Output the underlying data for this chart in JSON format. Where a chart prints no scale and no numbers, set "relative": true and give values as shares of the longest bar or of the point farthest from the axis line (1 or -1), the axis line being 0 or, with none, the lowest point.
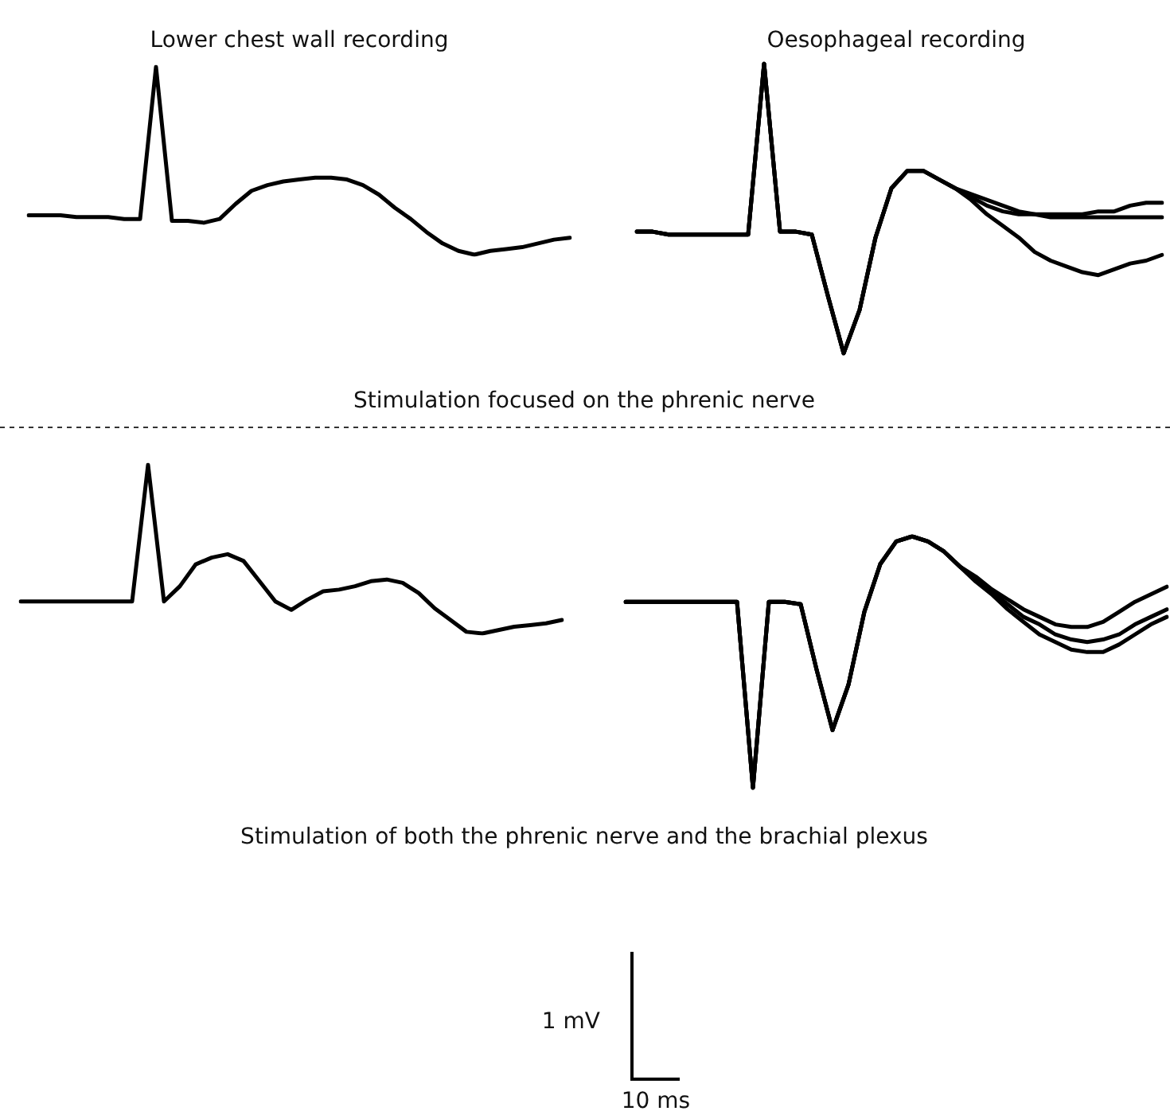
{
  "chart_data": [
    {
      "type": "line",
      "title": "Lower chest wall recording",
      "relative": true,
      "annotations": [
        "Stimulation focused on the phrenic nerve"
      ],
      "categories": [
        null,
        null,
        null,
        null,
        null,
        null,
        null,
        null,
        null,
        null,
        null,
        null,
        null,
        null,
        null,
        null,
        null,
        null,
        null,
        null,
        null,
        null,
        null,
        null,
        null,
        null,
        null,
        null,
        null,
        null,
        null,
        null,
        null,
        null,
        null
      ],
      "series": [
        {
          "color": "#000000",
          "values": [
            0.21,
            0.21,
            0.21,
            0.2,
            0.2,
            0.2,
            0.19,
            0.19,
            1,
            0.18,
            0.18,
            0.17,
            0.19,
            0.27,
            0.34,
            0.37,
            0.39,
            0.4,
            0.41,
            0.41,
            0.4,
            0.37,
            0.32,
            0.25,
            0.19,
            0.12,
            0.06,
            0.02,
            0,
            0.02,
            0.03,
            0.04,
            0.06,
            0.08,
            0.09
          ]
        }
      ]
    },
    {
      "type": "line",
      "title": "Oesophageal recording",
      "relative": true,
      "categories": [
        null,
        null,
        null,
        null,
        null,
        null,
        null,
        null,
        null,
        null,
        null,
        null,
        null,
        null,
        null,
        null,
        null,
        null,
        null,
        null,
        null,
        null,
        null,
        null,
        null,
        null,
        null,
        null,
        null,
        null,
        null,
        null,
        null,
        null
      ],
      "series": [
        {
          "color": "#000000",
          "values": [
            0.42,
            0.42,
            0.41,
            0.41,
            0.41,
            0.41,
            0.41,
            0.41,
            1,
            0.42,
            0.42,
            0.41,
            0.2,
            0,
            0.15,
            0.4,
            0.57,
            0.63,
            0.63,
            0.6,
            0.57,
            0.53,
            0.48,
            0.44,
            0.4,
            0.35,
            0.32,
            0.3,
            0.28,
            0.27,
            0.29,
            0.31,
            0.32,
            0.34
          ]
        },
        {
          "color": "#000000",
          "values": [
            0.42,
            0.42,
            0.41,
            0.41,
            0.41,
            0.41,
            0.41,
            0.41,
            1,
            0.42,
            0.42,
            0.41,
            0.2,
            0,
            0.15,
            0.4,
            0.57,
            0.63,
            0.63,
            0.6,
            0.57,
            0.54,
            0.51,
            0.49,
            0.48,
            0.48,
            0.47,
            0.47,
            0.47,
            0.47,
            0.47,
            0.47,
            0.47,
            0.47
          ]
        },
        {
          "color": "#000000",
          "values": [
            0.42,
            0.42,
            0.41,
            0.41,
            0.41,
            0.41,
            0.41,
            0.41,
            1,
            0.42,
            0.42,
            0.41,
            0.2,
            0,
            0.15,
            0.4,
            0.57,
            0.63,
            0.63,
            0.6,
            0.57,
            0.55,
            0.53,
            0.51,
            0.49,
            0.48,
            0.48,
            0.48,
            0.48,
            0.49,
            0.49,
            0.51,
            0.52,
            0.52
          ]
        }
      ]
    },
    {
      "type": "line",
      "relative": true,
      "annotations": [
        "Stimulation of both the phrenic nerve and the brachial plexus"
      ],
      "categories": [
        null,
        null,
        null,
        null,
        null,
        null,
        null,
        null,
        null,
        null,
        null,
        null,
        null,
        null,
        null,
        null,
        null,
        null,
        null,
        null,
        null,
        null,
        null,
        null,
        null,
        null,
        null,
        null,
        null,
        null,
        null,
        null,
        null,
        null,
        null
      ],
      "series": [
        {
          "color": "#000000",
          "values": [
            0.19,
            0.19,
            0.19,
            0.19,
            0.19,
            0.19,
            0.19,
            0.19,
            1,
            0.19,
            0.28,
            0.41,
            0.45,
            0.47,
            0.43,
            0.31,
            0.19,
            0.14,
            0.2,
            0.25,
            0.26,
            0.28,
            0.31,
            0.32,
            0.3,
            0.24,
            0.15,
            0.08,
            0.01,
            0,
            0.02,
            0.04,
            0.05,
            0.06,
            0.08
          ]
        }
      ]
    },
    {
      "type": "line",
      "relative": true,
      "annotations": [
        "1 mV",
        "10 ms"
      ],
      "categories": [
        null,
        null,
        null,
        null,
        null,
        null,
        null,
        null,
        null,
        null,
        null,
        null,
        null,
        null,
        null,
        null,
        null,
        null,
        null,
        null,
        null,
        null,
        null,
        null,
        null,
        null,
        null,
        null,
        null,
        null,
        null,
        null,
        null,
        null,
        null
      ],
      "series": [
        {
          "color": "#000000",
          "values": [
            0.74,
            0.74,
            0.74,
            0.74,
            0.74,
            0.74,
            0.74,
            0.74,
            0,
            0.74,
            0.74,
            0.73,
            0.47,
            0.23,
            0.41,
            0.7,
            0.89,
            0.98,
            1,
            0.98,
            0.94,
            0.88,
            0.82,
            0.77,
            0.71,
            0.66,
            0.61,
            0.58,
            0.55,
            0.54,
            0.54,
            0.57,
            0.61,
            0.65,
            0.68
          ]
        },
        {
          "color": "#000000",
          "values": [
            0.74,
            0.74,
            0.74,
            0.74,
            0.74,
            0.74,
            0.74,
            0.74,
            0,
            0.74,
            0.74,
            0.73,
            0.47,
            0.23,
            0.41,
            0.7,
            0.89,
            0.98,
            1,
            0.98,
            0.94,
            0.88,
            0.83,
            0.78,
            0.73,
            0.68,
            0.65,
            0.61,
            0.59,
            0.58,
            0.59,
            0.61,
            0.65,
            0.68,
            0.71
          ]
        },
        {
          "color": "#000000",
          "values": [
            0.74,
            0.74,
            0.74,
            0.74,
            0.74,
            0.74,
            0.74,
            0.74,
            0,
            0.74,
            0.74,
            0.73,
            0.47,
            0.23,
            0.41,
            0.7,
            0.89,
            0.98,
            1,
            0.98,
            0.94,
            0.88,
            0.84,
            0.79,
            0.75,
            0.71,
            0.68,
            0.65,
            0.64,
            0.64,
            0.66,
            0.7,
            0.74,
            0.77,
            0.8
          ]
        }
      ]
    }
  ]
}
